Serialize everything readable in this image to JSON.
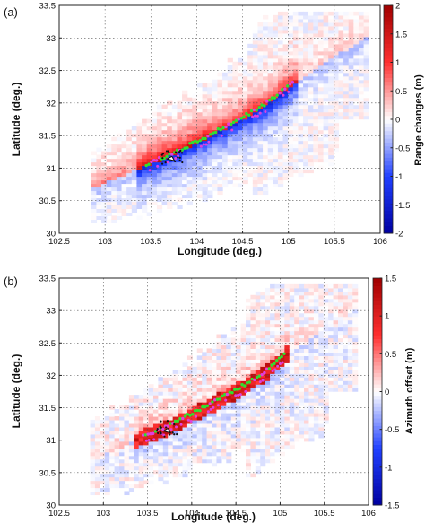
{
  "chart_data": [
    {
      "type": "heatmap",
      "panel_label": "(a)",
      "xlabel": "Longitude (deg.)",
      "ylabel": "Latitude (deg.)",
      "xlim": [
        102.5,
        106
      ],
      "ylim": [
        30,
        33.5
      ],
      "xticks": [
        "102.5",
        "103",
        "103.5",
        "104",
        "104.5",
        "105",
        "105.5",
        "106"
      ],
      "yticks": [
        "30",
        "30.5",
        "31",
        "31.5",
        "32",
        "32.5",
        "33",
        "33.5"
      ],
      "colorbar": {
        "label": "Range changes (m)",
        "range": [
          -2,
          2
        ],
        "ticks": [
          "-2",
          "-1.5",
          "-1",
          "-0.5",
          "0",
          "0.5",
          "1",
          "1.5",
          "2"
        ],
        "colors": [
          "#0000a0",
          "#2040ff",
          "#ffffff",
          "#ff3030",
          "#a00000"
        ]
      },
      "grid": true,
      "fault_trace_lon": [
        103.4,
        103.75,
        104.1,
        104.5,
        104.8,
        105.05
      ],
      "fault_trace_lat": [
        31.0,
        31.2,
        31.45,
        31.75,
        32.0,
        32.3
      ]
    },
    {
      "type": "heatmap",
      "panel_label": "(b)",
      "xlabel": "Longitude (deg.)",
      "ylabel": "Latitude (deg.)",
      "xlim": [
        102.5,
        106
      ],
      "ylim": [
        30,
        33.5
      ],
      "xticks": [
        "102.5",
        "103",
        "103.5",
        "104",
        "104.5",
        "105",
        "105.5",
        "106"
      ],
      "yticks": [
        "30",
        "30.5",
        "31",
        "31.5",
        "32",
        "32.5",
        "33",
        "33.5"
      ],
      "colorbar": {
        "label": "Azimuth offset (m)",
        "range": [
          -1.5,
          1.5
        ],
        "ticks": [
          "-1.5",
          "-1",
          "-0.5",
          "0",
          "0.5",
          "1",
          "1.5"
        ],
        "colors": [
          "#0000a0",
          "#2040ff",
          "#ffffff",
          "#ff3030",
          "#a00000"
        ]
      },
      "grid": true,
      "fault_trace_lon": [
        103.4,
        103.75,
        104.1,
        104.5,
        104.8,
        105.05
      ],
      "fault_trace_lat": [
        31.0,
        31.2,
        31.45,
        31.75,
        32.0,
        32.3
      ]
    }
  ]
}
